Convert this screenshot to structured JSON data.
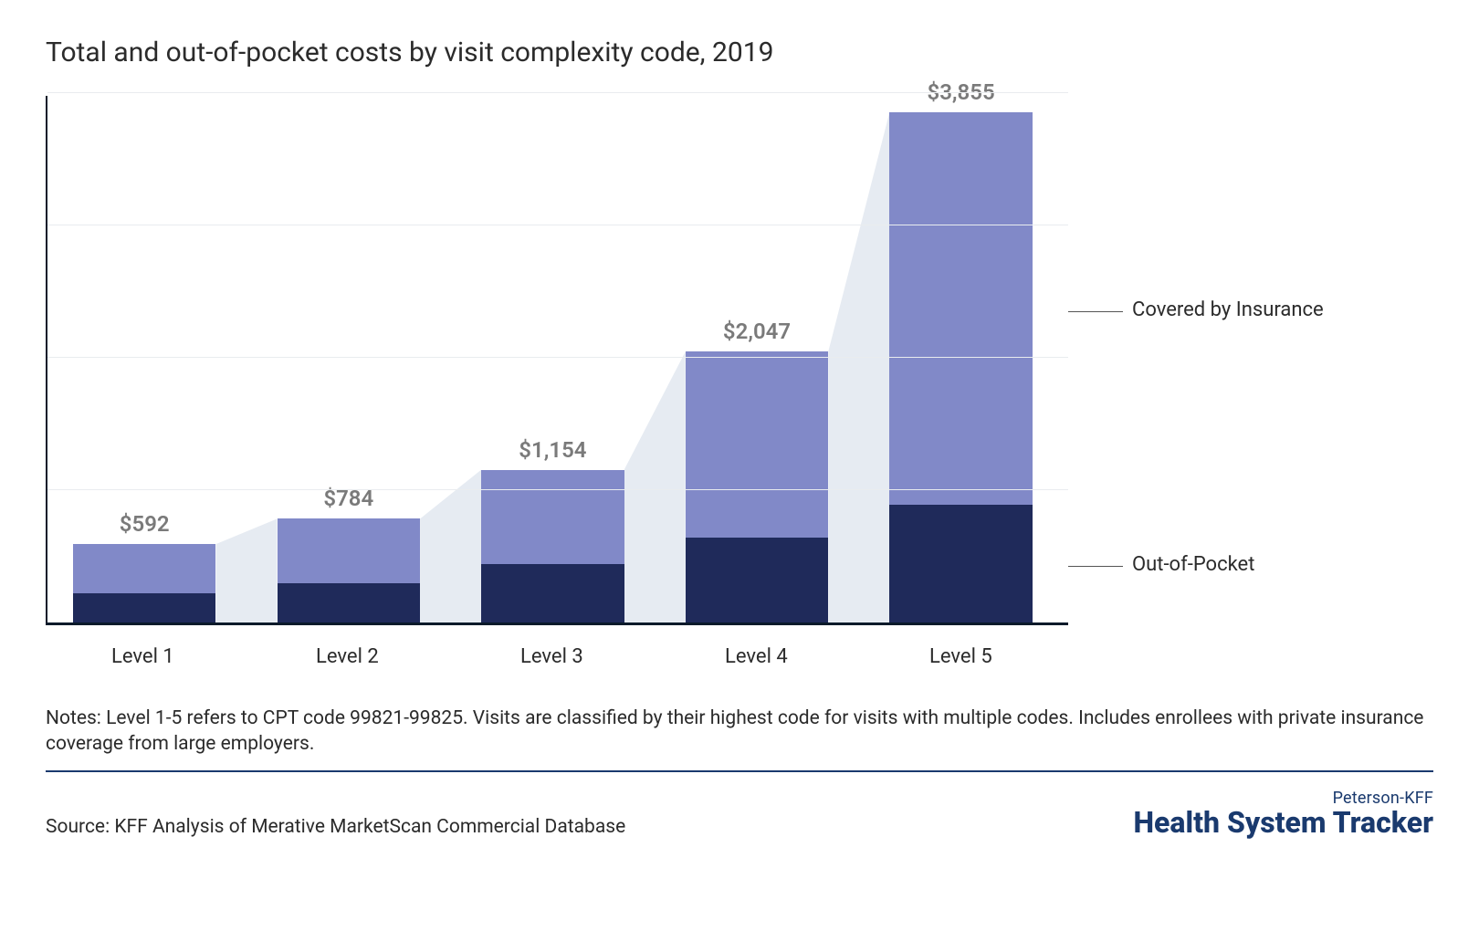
{
  "title": "Total and out-of-pocket costs by visit complexity code, 2019",
  "chart": {
    "type": "stacked-bar",
    "categories": [
      "Level 1",
      "Level 2",
      "Level 3",
      "Level 4",
      "Level 5"
    ],
    "totals": [
      592,
      784,
      1154,
      2047,
      3855
    ],
    "out_of_pocket": [
      220,
      300,
      440,
      640,
      890
    ],
    "value_labels": [
      "$592",
      "$784",
      "$1,154",
      "$2,047",
      "$3,855"
    ],
    "series": [
      {
        "key": "out_of_pocket",
        "label": "Out-of-Pocket",
        "color": "#1f2a5a"
      },
      {
        "key": "covered",
        "label": "Covered by Insurance",
        "color": "#8189c8"
      }
    ],
    "connector_color": "#e6ebf2",
    "y_max": 4000,
    "gridline_step": 1000,
    "grid_color": "#e9ecef",
    "axis_color": "#0a1a2a",
    "background_color": "#ffffff",
    "value_label_color": "#7a7a7a",
    "value_label_fontsize": 24,
    "xlabel_fontsize": 22,
    "bar_width_pct": 14,
    "bar_gap_pct": 6,
    "bar_left_start_pct": 2.5
  },
  "legend": {
    "items": [
      "Covered by Insurance",
      "Out-of-Pocket"
    ]
  },
  "notes": "Notes: Level 1-5 refers to CPT code 99821-99825. Visits are classified by their highest code for visits with multiple codes. Includes enrollees with private insurance coverage from large employers.",
  "source": "Source: KFF Analysis of Merative MarketScan Commercial Database",
  "brand": {
    "top": "Peterson-KFF",
    "bottom": "Health System Tracker",
    "color": "#1a3a6e"
  }
}
